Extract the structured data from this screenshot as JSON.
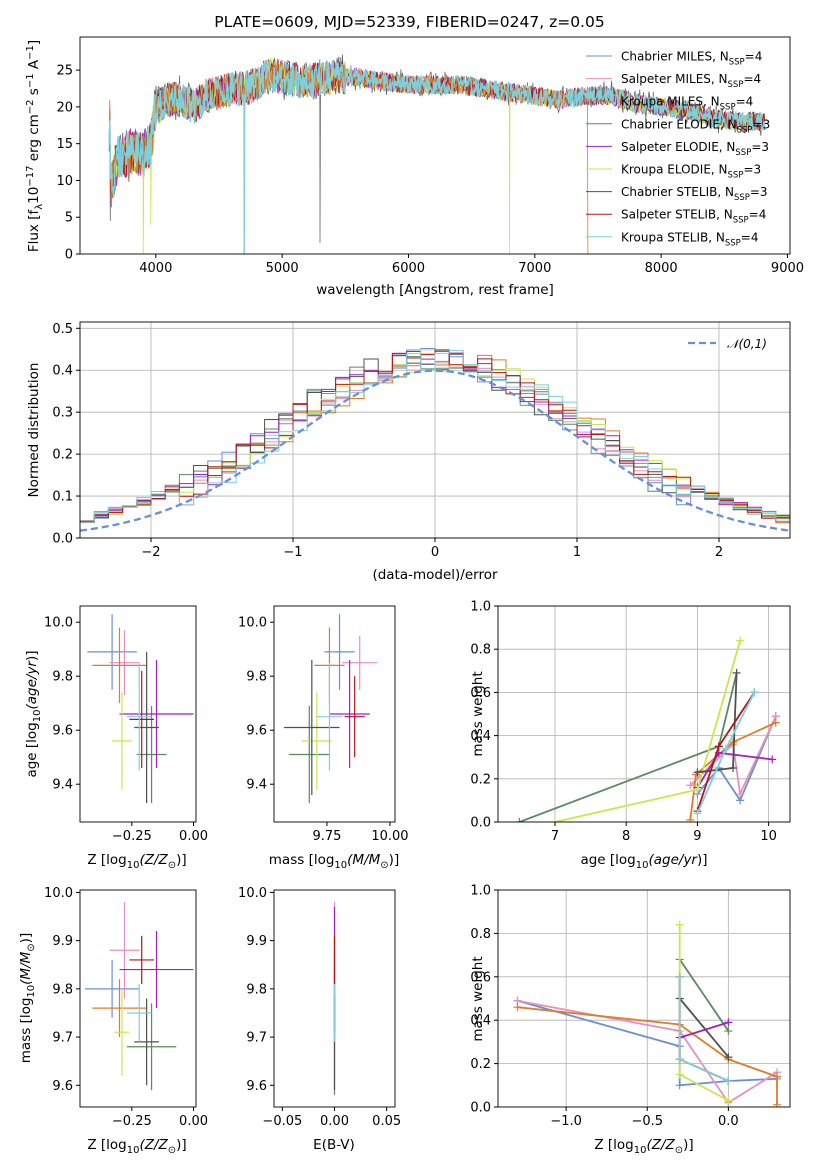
{
  "figure": {
    "title": "PLATE=0609, MJD=52339, FIBERID=0247, z=0.05"
  },
  "series": [
    {
      "name": "Chabrier MILES",
      "nssp": "4",
      "color": "#6a8fd8"
    },
    {
      "name": "Salpeter MILES",
      "nssp": "4",
      "color": "#e98fc0"
    },
    {
      "name": "Kroupa MILES",
      "nssp": "4",
      "color": "#e07b27"
    },
    {
      "name": "Chabrier ELODIE",
      "nssp": "3",
      "color": "#5a8a62"
    },
    {
      "name": "Salpeter ELODIE",
      "nssp": "3",
      "color": "#a020c0"
    },
    {
      "name": "Kroupa ELODIE",
      "nssp": "3",
      "color": "#c8e84a"
    },
    {
      "name": "Chabrier STELIB",
      "nssp": "3",
      "color": "#505050"
    },
    {
      "name": "Salpeter STELIB",
      "nssp": "4",
      "color": "#b01818"
    },
    {
      "name": "Kroupa STELIB",
      "nssp": "4",
      "color": "#7ed0dc"
    }
  ],
  "chart_data": [
    {
      "id": "spectrum",
      "type": "line",
      "xlabel": "wavelength [Angstrom, rest frame]",
      "ylabel": "Flux [f_λ 10^-17 erg cm^-2 s^-1 A^-1]",
      "xlim": [
        3400,
        9020
      ],
      "ylim": [
        0,
        29.5
      ],
      "xticks": [
        4000,
        5000,
        6000,
        7000,
        8000,
        9000
      ],
      "yticks": [
        0,
        5,
        10,
        15,
        20,
        25
      ],
      "grid": false,
      "legend": "top-right",
      "envelope": [
        [
          3640,
          9
        ],
        [
          3700,
          13
        ],
        [
          3800,
          14
        ],
        [
          3900,
          13.5
        ],
        [
          3960,
          15
        ],
        [
          4000,
          20
        ],
        [
          4100,
          21
        ],
        [
          4200,
          21
        ],
        [
          4300,
          20
        ],
        [
          4400,
          21.5
        ],
        [
          4500,
          22
        ],
        [
          4600,
          22.5
        ],
        [
          4700,
          22.5
        ],
        [
          4800,
          23
        ],
        [
          4900,
          24.5
        ],
        [
          5000,
          24
        ],
        [
          5200,
          23.5
        ],
        [
          5400,
          24
        ],
        [
          5600,
          24
        ],
        [
          5800,
          23.5
        ],
        [
          6000,
          23
        ],
        [
          6200,
          23
        ],
        [
          6400,
          23
        ],
        [
          6600,
          22.5
        ],
        [
          6800,
          22
        ],
        [
          7000,
          21.5
        ],
        [
          7200,
          21
        ],
        [
          7400,
          21.5
        ],
        [
          7600,
          21.5
        ],
        [
          7800,
          20.5
        ],
        [
          8000,
          20
        ],
        [
          8200,
          19.5
        ],
        [
          8400,
          18.5
        ],
        [
          8600,
          18
        ],
        [
          8800,
          18
        ]
      ],
      "dips": [
        [
          3640,
          6,
          4.5
        ],
        [
          3900,
          3,
          0
        ],
        [
          3960,
          3,
          4
        ],
        [
          4700,
          3,
          0
        ],
        [
          5300,
          3,
          1.5
        ],
        [
          6800,
          3,
          0
        ],
        [
          7420,
          3,
          0
        ]
      ]
    },
    {
      "id": "residuals",
      "type": "step",
      "xlabel": "(data-model)/error",
      "ylabel": "Normed distribution",
      "xlim": [
        -2.5,
        2.5
      ],
      "ylim": [
        0,
        0.515
      ],
      "xticks": [
        -2,
        -1,
        0,
        1,
        2
      ],
      "yticks": [
        0.0,
        0.1,
        0.2,
        0.3,
        0.4,
        0.5
      ],
      "grid": true,
      "legend": "top-right",
      "reference_label": "𝒩(0,1)",
      "reference_color": "#6a8fd8",
      "bin_width": 0.1
    },
    {
      "id": "z-age",
      "type": "errorbar",
      "xlabel": "Z [log10(Z/Z⊙)]",
      "ylabel": "age  [log10(age/yr)]",
      "xlim": [
        -0.46,
        0.01
      ],
      "ylim": [
        9.26,
        10.06
      ],
      "xticks": [
        -0.25,
        0.0
      ],
      "xticklabels": [
        "−0.25",
        "0.00"
      ],
      "yticks": [
        9.4,
        9.6,
        9.8,
        10.0
      ],
      "points": [
        {
          "x": -0.33,
          "xerr": 0.1,
          "y": 9.89,
          "yerr": 0.14
        },
        {
          "x": -0.28,
          "xerr": 0.06,
          "y": 9.85,
          "yerr": 0.12
        },
        {
          "x": -0.3,
          "xerr": 0.11,
          "y": 9.84,
          "yerr": 0.14
        },
        {
          "x": -0.17,
          "xerr": 0.06,
          "y": 9.51,
          "yerr": 0.18
        },
        {
          "x": -0.15,
          "xerr": 0.15,
          "y": 9.66,
          "yerr": 0.2
        },
        {
          "x": -0.29,
          "xerr": 0.04,
          "y": 9.56,
          "yerr": 0.18
        },
        {
          "x": -0.19,
          "xerr": 0.05,
          "y": 9.61,
          "yerr": 0.28
        },
        {
          "x": -0.21,
          "xerr": 0.05,
          "y": 9.64,
          "yerr": 0.18
        },
        {
          "x": -0.22,
          "xerr": 0.05,
          "y": 9.65,
          "yerr": 0.2
        }
      ]
    },
    {
      "id": "mass-age",
      "type": "errorbar",
      "xlabel": "mass [log10(M/M⊙)]",
      "ylabel": "",
      "xlim": [
        9.54,
        10.02
      ],
      "ylim": [
        9.26,
        10.06
      ],
      "xticks": [
        9.75,
        10.0
      ],
      "xticklabels": [
        "9.75",
        "10.00"
      ],
      "yticks": [
        9.4,
        9.6,
        9.8,
        10.0
      ],
      "points": [
        {
          "x": 9.8,
          "xerr": 0.06,
          "y": 9.89,
          "yerr": 0.14
        },
        {
          "x": 9.88,
          "xerr": 0.07,
          "y": 9.85,
          "yerr": 0.1
        },
        {
          "x": 9.76,
          "xerr": 0.06,
          "y": 9.84,
          "yerr": 0.14
        },
        {
          "x": 9.68,
          "xerr": 0.08,
          "y": 9.51,
          "yerr": 0.18
        },
        {
          "x": 9.84,
          "xerr": 0.08,
          "y": 9.66,
          "yerr": 0.2
        },
        {
          "x": 9.71,
          "xerr": 0.06,
          "y": 9.56,
          "yerr": 0.18
        },
        {
          "x": 9.69,
          "xerr": 0.11,
          "y": 9.61,
          "yerr": 0.25
        },
        {
          "x": 9.86,
          "xerr": 0.04,
          "y": 9.65,
          "yerr": 0.15
        },
        {
          "x": 9.76,
          "xerr": 0.05,
          "y": 9.65,
          "yerr": 0.2
        }
      ]
    },
    {
      "id": "age-weight",
      "type": "line",
      "xlabel": "age  [log10(age/yr)]",
      "ylabel": "mass weight",
      "xlim": [
        6.2,
        10.3
      ],
      "ylim": [
        0,
        1
      ],
      "xticks": [
        7,
        8,
        9,
        10
      ],
      "yticks": [
        0.0,
        0.2,
        0.4,
        0.6,
        0.8,
        1.0
      ],
      "grid": true,
      "lines": [
        {
          "x": [
            9.0,
            9.3,
            9.6,
            10.1
          ],
          "y": [
            0.13,
            0.25,
            0.1,
            0.49
          ]
        },
        {
          "x": [
            8.9,
            9.5,
            9.6,
            10.1
          ],
          "y": [
            0.17,
            0.36,
            0.13,
            0.49
          ]
        },
        {
          "x": [
            8.9,
            8.98,
            9.5,
            10.1
          ],
          "y": [
            0.01,
            0.22,
            0.37,
            0.46
          ]
        },
        {
          "x": [
            6.5,
            9.3,
            9.55
          ],
          "y": [
            0.0,
            0.35,
            0.69
          ]
        },
        {
          "x": [
            9.0,
            9.3,
            10.05
          ],
          "y": [
            0.16,
            0.32,
            0.29
          ]
        },
        {
          "x": [
            7.0,
            9.0,
            9.6
          ],
          "y": [
            0.0,
            0.15,
            0.84
          ]
        },
        {
          "x": [
            9.0,
            9.5,
            9.55
          ],
          "y": [
            0.23,
            0.25,
            0.69
          ]
        },
        {
          "x": [
            9.0,
            9.3,
            9.8
          ],
          "y": [
            0.05,
            0.35,
            0.6
          ]
        },
        {
          "x": [
            9.0,
            9.4,
            9.8
          ],
          "y": [
            0.04,
            0.34,
            0.6
          ]
        }
      ]
    },
    {
      "id": "z-mass",
      "type": "errorbar",
      "xlabel": "Z [log10(Z/Z⊙)]",
      "ylabel": "mass [log10(M/M⊙)]",
      "xlim": [
        -0.46,
        0.01
      ],
      "ylim": [
        9.555,
        10.005
      ],
      "xticks": [
        -0.25,
        0.0
      ],
      "xticklabels": [
        "−0.25",
        "0.00"
      ],
      "yticks": [
        9.6,
        9.7,
        9.8,
        9.9,
        10.0
      ],
      "points": [
        {
          "x": -0.33,
          "xerr": 0.11,
          "y": 9.8,
          "yerr": 0.06
        },
        {
          "x": -0.28,
          "xerr": 0.06,
          "y": 9.88,
          "yerr": 0.1
        },
        {
          "x": -0.3,
          "xerr": 0.11,
          "y": 9.76,
          "yerr": 0.06
        },
        {
          "x": -0.17,
          "xerr": 0.1,
          "y": 9.68,
          "yerr": 0.09
        },
        {
          "x": -0.15,
          "xerr": 0.15,
          "y": 9.84,
          "yerr": 0.08
        },
        {
          "x": -0.29,
          "xerr": 0.03,
          "y": 9.71,
          "yerr": 0.09
        },
        {
          "x": -0.19,
          "xerr": 0.05,
          "y": 9.69,
          "yerr": 0.09
        },
        {
          "x": -0.21,
          "xerr": 0.05,
          "y": 9.86,
          "yerr": 0.05
        },
        {
          "x": -0.22,
          "xerr": 0.05,
          "y": 9.75,
          "yerr": 0.06
        }
      ]
    },
    {
      "id": "ebv-mass",
      "type": "errorbar",
      "xlabel": "E(B-V)",
      "ylabel": "",
      "xlim": [
        -0.058,
        0.058
      ],
      "ylim": [
        9.555,
        10.005
      ],
      "xticks": [
        -0.05,
        0.0,
        0.05
      ],
      "xticklabels": [
        "−0.05",
        "0.00",
        "0.05"
      ],
      "yticks": [
        9.6,
        9.7,
        9.8,
        9.9,
        10.0
      ],
      "points": [
        {
          "x": 0,
          "xerr": 0,
          "y": 9.8,
          "yerr": 0.08
        },
        {
          "x": 0,
          "xerr": 0,
          "y": 9.88,
          "yerr": 0.1
        },
        {
          "x": 0,
          "xerr": 0,
          "y": 9.76,
          "yerr": 0.08
        },
        {
          "x": 0,
          "xerr": 0,
          "y": 9.68,
          "yerr": 0.1
        },
        {
          "x": 0,
          "xerr": 0,
          "y": 9.84,
          "yerr": 0.13
        },
        {
          "x": 0,
          "xerr": 0,
          "y": 9.71,
          "yerr": 0.1
        },
        {
          "x": 0,
          "xerr": 0,
          "y": 9.69,
          "yerr": 0.1
        },
        {
          "x": 0,
          "xerr": 0,
          "y": 9.86,
          "yerr": 0.05
        },
        {
          "x": 0,
          "xerr": 0,
          "y": 9.75,
          "yerr": 0.06
        }
      ]
    },
    {
      "id": "z-weight",
      "type": "line",
      "xlabel": "Z [log10(Z/Z⊙)]",
      "ylabel": "mass weight",
      "xlim": [
        -1.42,
        0.38
      ],
      "ylim": [
        0,
        1
      ],
      "xticks": [
        -1.0,
        -0.5,
        0.0
      ],
      "xticklabels": [
        "−1.0",
        "−0.5",
        "0.0"
      ],
      "yticks": [
        0.0,
        0.2,
        0.4,
        0.6,
        0.8,
        1.0
      ],
      "grid": true,
      "lines": [
        {
          "x": [
            -1.3,
            -0.3,
            -0.3,
            0.0,
            0.3
          ],
          "y": [
            0.49,
            0.28,
            0.1,
            0.12,
            0.13
          ]
        },
        {
          "x": [
            -1.3,
            -0.3,
            0.0,
            0.3
          ],
          "y": [
            0.49,
            0.35,
            0.02,
            0.16
          ]
        },
        {
          "x": [
            -1.3,
            -0.3,
            0.0,
            0.3,
            0.3
          ],
          "y": [
            0.46,
            0.38,
            0.22,
            0.14,
            0.01
          ]
        },
        {
          "x": [
            -0.3,
            0.0
          ],
          "y": [
            0.68,
            0.35
          ]
        },
        {
          "x": [
            -0.3,
            0.0
          ],
          "y": [
            0.32,
            0.39
          ]
        },
        {
          "x": [
            -0.3,
            -0.3,
            0.0
          ],
          "y": [
            0.84,
            0.15,
            0.03
          ]
        },
        {
          "x": [
            -0.3,
            0.0
          ],
          "y": [
            0.5,
            0.23
          ]
        },
        {
          "x": [
            -0.3,
            -0.3,
            0.0
          ],
          "y": [
            0.6,
            0.22,
            0.12
          ]
        },
        {
          "x": [
            -0.3,
            -0.3,
            0.0
          ],
          "y": [
            0.6,
            0.22,
            0.12
          ]
        }
      ]
    }
  ]
}
